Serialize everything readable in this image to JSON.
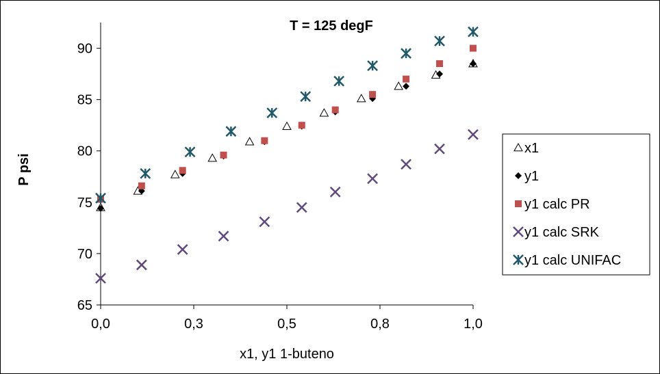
{
  "chart_data": {
    "type": "scatter",
    "title": "T = 125 degF",
    "xlabel": "x1, y1 1-buteno",
    "ylabel": "P psi",
    "xlim": [
      0,
      1
    ],
    "ylim": [
      65,
      92.5
    ],
    "x_ticks": [
      0,
      0.25,
      0.5,
      0.75,
      1
    ],
    "x_tick_labels": [
      "0,0",
      "0,3",
      "0,5",
      "0,8",
      "1,0"
    ],
    "y_ticks": [
      65,
      70,
      75,
      80,
      85,
      90
    ],
    "y_tick_labels": [
      "65",
      "70",
      "75",
      "80",
      "85",
      "90"
    ],
    "grid": false,
    "legend_position": "right",
    "series": [
      {
        "name": "x1",
        "marker": "triangle-open",
        "color": "#000000",
        "points": [
          [
            0.0,
            74.5
          ],
          [
            0.1,
            76.1
          ],
          [
            0.2,
            77.7
          ],
          [
            0.3,
            79.3
          ],
          [
            0.4,
            80.9
          ],
          [
            0.5,
            82.4
          ],
          [
            0.6,
            83.7
          ],
          [
            0.7,
            85.1
          ],
          [
            0.8,
            86.3
          ],
          [
            0.9,
            87.4
          ],
          [
            1.0,
            88.5
          ]
        ]
      },
      {
        "name": "y1",
        "marker": "diamond",
        "color": "#000000",
        "points": [
          [
            0.0,
            74.4
          ],
          [
            0.11,
            76.1
          ],
          [
            0.22,
            77.8
          ],
          [
            0.33,
            79.5
          ],
          [
            0.44,
            80.9
          ],
          [
            0.54,
            82.4
          ],
          [
            0.63,
            83.8
          ],
          [
            0.73,
            85.1
          ],
          [
            0.82,
            86.3
          ],
          [
            0.91,
            87.5
          ],
          [
            1.0,
            88.5
          ]
        ]
      },
      {
        "name": "y1 calc PR",
        "marker": "square",
        "color": "#C0504D",
        "points": [
          [
            0.0,
            75.3
          ],
          [
            0.11,
            76.6
          ],
          [
            0.22,
            78.1
          ],
          [
            0.33,
            79.6
          ],
          [
            0.44,
            81.0
          ],
          [
            0.54,
            82.5
          ],
          [
            0.63,
            84.0
          ],
          [
            0.73,
            85.5
          ],
          [
            0.82,
            87.0
          ],
          [
            0.91,
            88.5
          ],
          [
            1.0,
            90.0
          ]
        ]
      },
      {
        "name": "y1 calc SRK",
        "marker": "x",
        "color": "#604A7B",
        "points": [
          [
            0.0,
            67.6
          ],
          [
            0.11,
            68.9
          ],
          [
            0.22,
            70.4
          ],
          [
            0.33,
            71.7
          ],
          [
            0.44,
            73.1
          ],
          [
            0.54,
            74.5
          ],
          [
            0.63,
            76.0
          ],
          [
            0.73,
            77.3
          ],
          [
            0.82,
            78.7
          ],
          [
            0.91,
            80.2
          ],
          [
            1.0,
            81.6
          ]
        ]
      },
      {
        "name": "y1 calc UNIFAC",
        "marker": "asterisk",
        "color": "#215968",
        "points": [
          [
            0.0,
            75.4
          ],
          [
            0.12,
            77.8
          ],
          [
            0.24,
            79.9
          ],
          [
            0.35,
            81.9
          ],
          [
            0.46,
            83.7
          ],
          [
            0.55,
            85.3
          ],
          [
            0.64,
            86.8
          ],
          [
            0.73,
            88.3
          ],
          [
            0.82,
            89.5
          ],
          [
            0.91,
            90.7
          ],
          [
            1.0,
            91.6
          ]
        ]
      }
    ]
  }
}
